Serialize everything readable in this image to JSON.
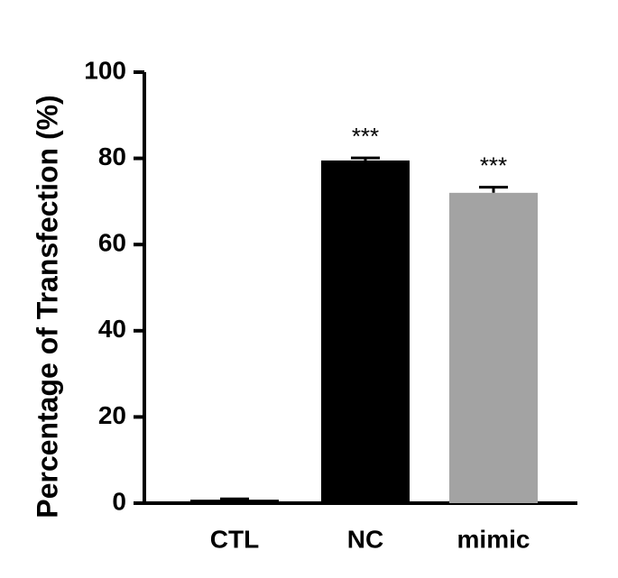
{
  "chart_data": {
    "type": "bar",
    "y_label": "Percentage of Transfection (%)",
    "categories": [
      "CTL",
      "NC",
      "mimic"
    ],
    "values": [
      0.8,
      79.5,
      72
    ],
    "errors": [
      0.2,
      0.6,
      1.3
    ],
    "annotations": [
      null,
      "***",
      "***"
    ],
    "colors": [
      "#000000",
      "#000000",
      "#a3a3a3"
    ],
    "ylim": [
      0,
      100
    ],
    "yticks": [
      0,
      20,
      40,
      60,
      80,
      100
    ]
  }
}
